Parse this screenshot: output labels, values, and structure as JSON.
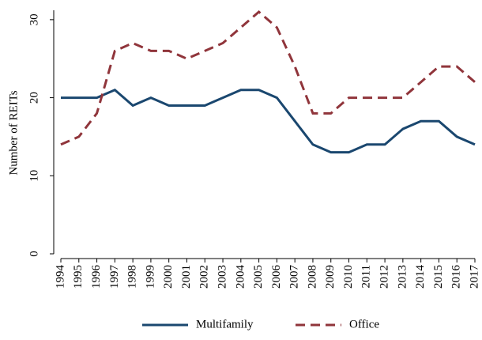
{
  "chart_data": {
    "type": "line",
    "y_label": "Number of REITs",
    "x": [
      1994,
      1995,
      1996,
      1997,
      1998,
      1999,
      2000,
      2001,
      2002,
      2003,
      2004,
      2005,
      2006,
      2007,
      2008,
      2009,
      2010,
      2011,
      2012,
      2013,
      2014,
      2015,
      2016,
      2017
    ],
    "series": [
      {
        "name": "Multifamily",
        "color": "#1a476f",
        "dash": "solid",
        "values": [
          20,
          20,
          20,
          21,
          19,
          20,
          19,
          19,
          19,
          20,
          21,
          21,
          20,
          17,
          14,
          13,
          13,
          14,
          14,
          16,
          17,
          17,
          15,
          14
        ]
      },
      {
        "name": "Office",
        "color": "#90353b",
        "dash": "dashed",
        "values": [
          14,
          15,
          18,
          26,
          27,
          26,
          26,
          25,
          26,
          27,
          29,
          31,
          29,
          24,
          18,
          18,
          20,
          20,
          20,
          20,
          22,
          24,
          24,
          22
        ]
      }
    ],
    "xlim": [
      1994,
      2017
    ],
    "xticks": [
      1994,
      1995,
      1996,
      1997,
      1998,
      1999,
      2000,
      2001,
      2002,
      2003,
      2004,
      2005,
      2006,
      2007,
      2008,
      2009,
      2010,
      2011,
      2012,
      2013,
      2014,
      2015,
      2016,
      2017
    ],
    "ylim": [
      0,
      31
    ],
    "yticks": [
      0,
      10,
      20,
      30
    ],
    "grid": false,
    "legend": "bottom"
  }
}
